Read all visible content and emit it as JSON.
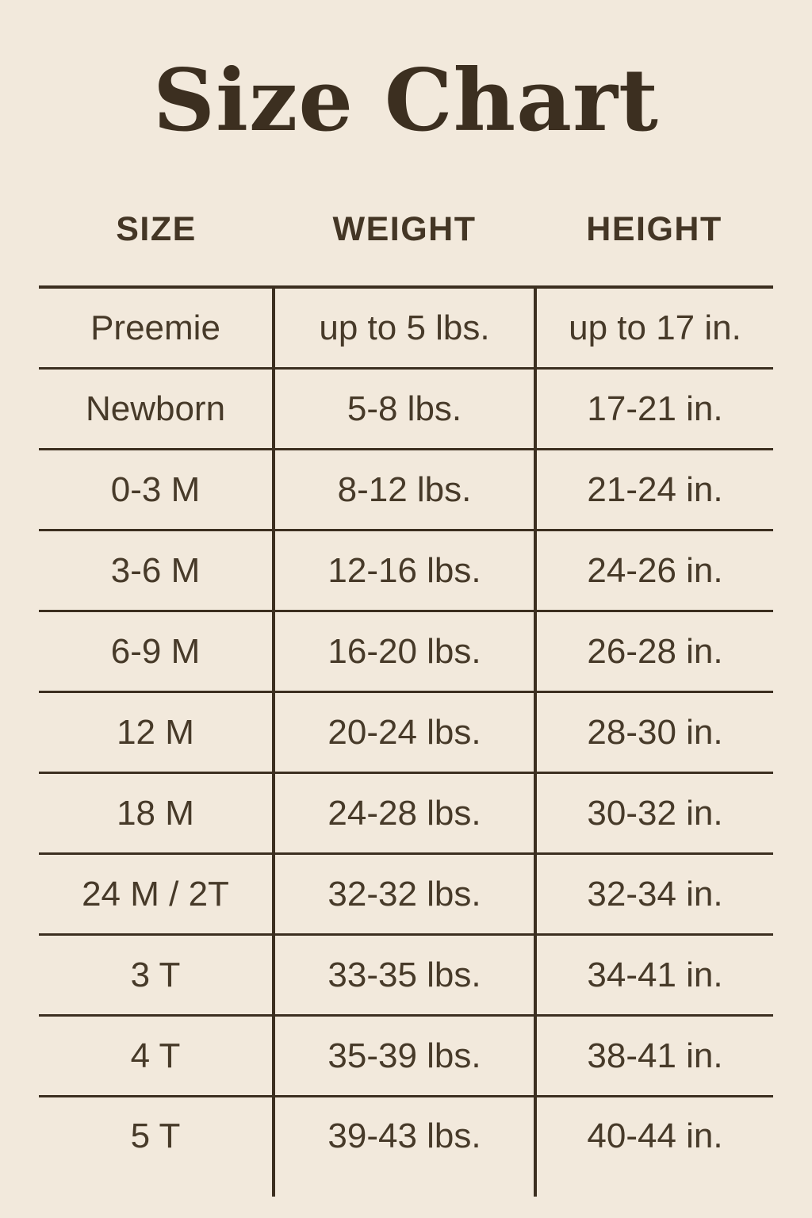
{
  "style": {
    "background_color": "#f2e9dc",
    "ink_color": "#473a29",
    "line_color": "#3c2f20"
  },
  "chart_data": {
    "type": "table",
    "title": "Size Chart",
    "columns": [
      "SIZE",
      "WEIGHT",
      "HEIGHT"
    ],
    "rows": [
      {
        "size": "Preemie",
        "weight": "up to 5 lbs.",
        "height": "up to 17 in."
      },
      {
        "size": "Newborn",
        "weight": "5-8 lbs.",
        "height": "17-21 in."
      },
      {
        "size": "0-3 M",
        "weight": "8-12 lbs.",
        "height": "21-24 in."
      },
      {
        "size": "3-6 M",
        "weight": "12-16 lbs.",
        "height": "24-26 in."
      },
      {
        "size": "6-9 M",
        "weight": "16-20 lbs.",
        "height": "26-28 in."
      },
      {
        "size": "12 M",
        "weight": "20-24 lbs.",
        "height": "28-30 in."
      },
      {
        "size": "18 M",
        "weight": "24-28 lbs.",
        "height": "30-32 in."
      },
      {
        "size": "24 M / 2T",
        "weight": "32-32 lbs.",
        "height": "32-34 in."
      },
      {
        "size": "3 T",
        "weight": "33-35 lbs.",
        "height": "34-41 in."
      },
      {
        "size": "4 T",
        "weight": "35-39 lbs.",
        "height": "38-41 in."
      },
      {
        "size": "5 T",
        "weight": "39-43 lbs.",
        "height": "40-44 in."
      }
    ]
  }
}
